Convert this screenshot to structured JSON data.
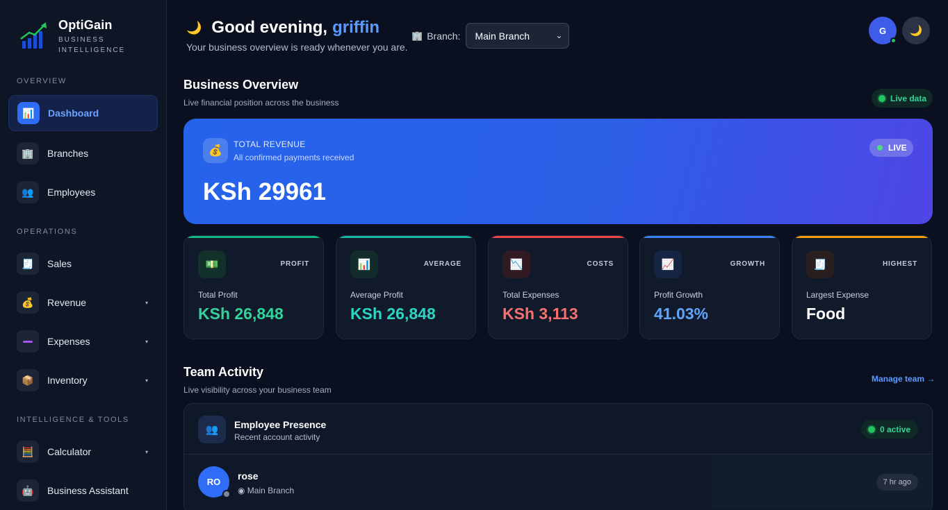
{
  "brand": {
    "name": "OptiGain",
    "subtitle": "BUSINESS INTELLIGENCE"
  },
  "sidebar": {
    "sections": [
      "OVERVIEW",
      "OPERATIONS",
      "INTELLIGENCE & TOOLS"
    ],
    "items": [
      {
        "label": "Dashboard",
        "icon": "bar-chart-icon",
        "glyph": "📊",
        "active": true
      },
      {
        "label": "Branches",
        "icon": "building-icon",
        "glyph": "🏢"
      },
      {
        "label": "Employees",
        "icon": "people-icon",
        "glyph": "👥"
      },
      {
        "label": "Sales",
        "icon": "receipt-icon",
        "glyph": "🧾"
      },
      {
        "label": "Revenue",
        "icon": "money-bag-icon",
        "glyph": "💰",
        "caret": "▾"
      },
      {
        "label": "Expenses",
        "icon": "minus-icon",
        "glyph": "➖",
        "caret": "▾"
      },
      {
        "label": "Inventory",
        "icon": "package-icon",
        "glyph": "📦",
        "caret": "▾"
      },
      {
        "label": "Calculator",
        "icon": "calculator-icon",
        "glyph": "🧮",
        "caret": "▾"
      },
      {
        "label": "Business Assistant",
        "icon": "robot-icon",
        "glyph": "🤖"
      }
    ]
  },
  "header": {
    "greeting": "Good evening,",
    "user": "griffin",
    "moon_glyph": "🌙",
    "subtitle": "Your business overview is ready whenever you are.",
    "branch_label": "Branch:",
    "branch_glyph": "🏢",
    "branch_value": "Main Branch",
    "avatar_initial": "G",
    "theme_glyph": "🌙"
  },
  "overview": {
    "title": "Business Overview",
    "subtitle": "Live financial position across the business",
    "live_badge": "Live data"
  },
  "hero": {
    "label": "TOTAL REVENUE",
    "sub": "All confirmed payments received",
    "value": "KSh 29961",
    "badge": "LIVE",
    "glyph": "💰"
  },
  "stats": [
    {
      "tag": "PROFIT",
      "label": "Total Profit",
      "value": "KSh 26,848",
      "glyph": "💵",
      "color": "#34d399",
      "accent": "#10b981",
      "icon_bg": "#13302a"
    },
    {
      "tag": "AVERAGE",
      "label": "Average Profit",
      "value": "KSh 26,848",
      "glyph": "📊",
      "color": "#2dd4bf",
      "accent": "#14b8a6",
      "icon_bg": "#122c2c"
    },
    {
      "tag": "COSTS",
      "label": "Total Expenses",
      "value": "KSh 3,113",
      "glyph": "📉",
      "color": "#f87171",
      "accent": "#ef4444",
      "icon_bg": "#321a22"
    },
    {
      "tag": "GROWTH",
      "label": "Profit Growth",
      "value": "41.03%",
      "glyph": "📈",
      "color": "#60a5fa",
      "accent": "#3b82f6",
      "icon_bg": "#172544"
    },
    {
      "tag": "HIGHEST",
      "label": "Largest Expense",
      "value": "Food",
      "glyph": "🧾",
      "color": "#ffffff",
      "accent": "#f59e0b",
      "icon_bg": "#2a1f1f"
    }
  ],
  "team": {
    "title": "Team Activity",
    "subtitle": "Live visibility across your business team",
    "manage_link": "Manage team →",
    "panel_title": "Employee Presence",
    "panel_sub": "Recent account activity",
    "panel_glyph": "👥",
    "active_badge": "0 active",
    "members": [
      {
        "initials": "RO",
        "name": "rose",
        "branch": "◉ Main Branch",
        "time": "7 hr ago"
      }
    ]
  }
}
